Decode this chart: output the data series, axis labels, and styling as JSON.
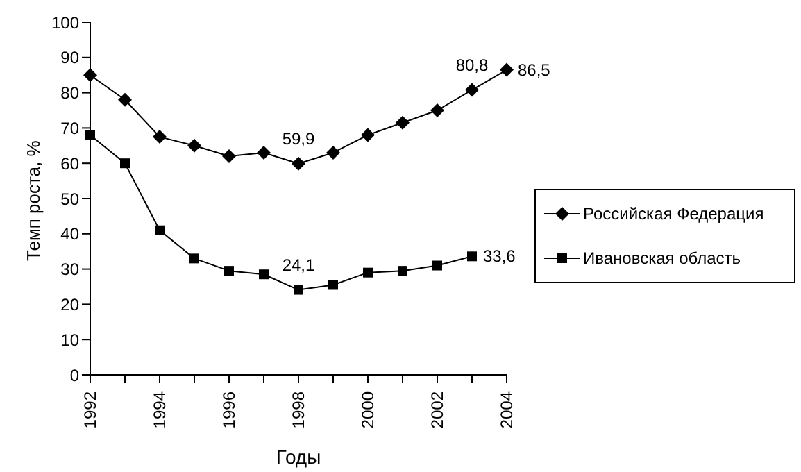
{
  "chart_data": {
    "type": "line",
    "xlabel": "Годы",
    "ylabel": "Темп роста, %",
    "categories": [
      "1992",
      null,
      "1994",
      null,
      "1996",
      null,
      "1998",
      null,
      "2000",
      null,
      "2002",
      null,
      "2004"
    ],
    "series": [
      {
        "name": "Российская Федерация",
        "color": "#000000",
        "marker": "diamond",
        "values": [
          85,
          78,
          67.5,
          65,
          62,
          63,
          59.9,
          63,
          68,
          71.5,
          75,
          80.8,
          86.5
        ],
        "value_labels": [
          null,
          null,
          null,
          null,
          null,
          null,
          "59,9",
          null,
          null,
          null,
          null,
          "80,8",
          "86,5"
        ]
      },
      {
        "name": "Ивановская область",
        "color": "#000000",
        "marker": "square",
        "values": [
          68,
          60,
          41,
          33,
          29.5,
          28.5,
          24.1,
          25.5,
          29,
          29.5,
          31,
          33.6,
          null
        ],
        "value_labels": [
          null,
          null,
          null,
          null,
          null,
          null,
          "24,1",
          null,
          null,
          null,
          null,
          "33,6",
          null
        ]
      }
    ],
    "ylim": [
      0,
      100
    ],
    "yticks": [
      0,
      10,
      20,
      30,
      40,
      50,
      60,
      70,
      80,
      90,
      100
    ],
    "grid": false,
    "legend": "right",
    "line_style": "solid"
  }
}
